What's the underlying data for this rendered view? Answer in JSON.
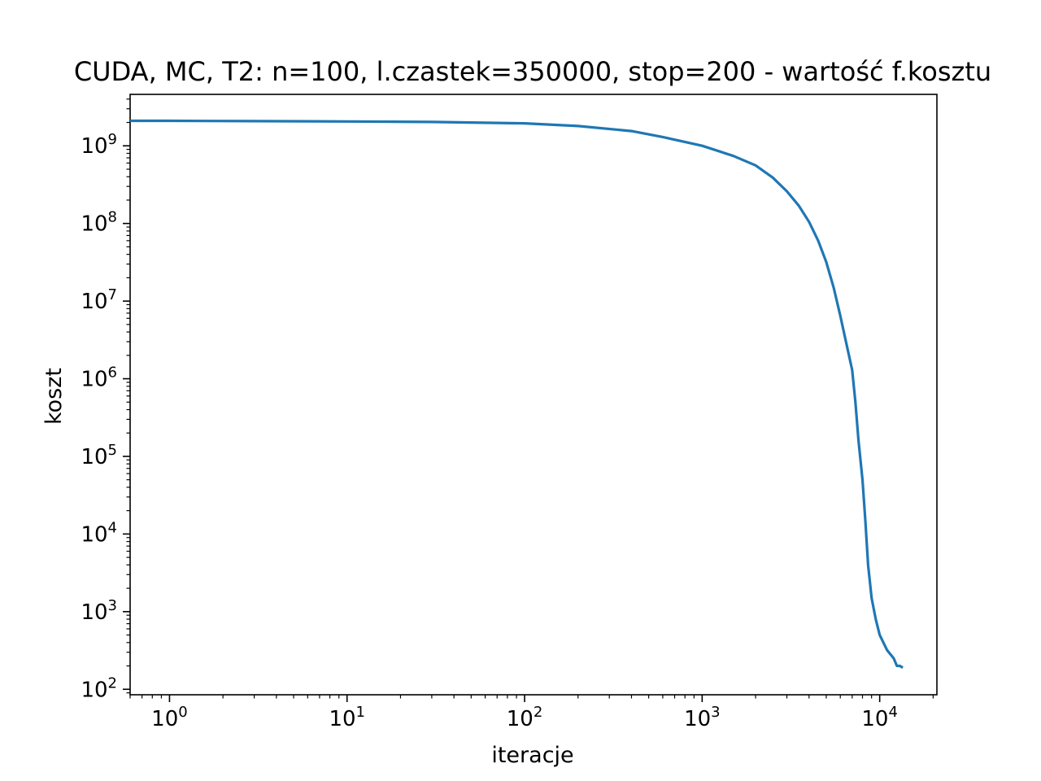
{
  "chart_data": {
    "type": "line",
    "title": "CUDA, MC, T2: n=100, l.czastek=350000, stop=200 - wartość f.kosztu",
    "xlabel": "iteracje",
    "ylabel": "koszt",
    "xscale": "log",
    "yscale": "log",
    "xlim": [
      0.6,
      21000
    ],
    "ylim": [
      85,
      4600000000
    ],
    "grid": false,
    "legend": "none",
    "line_color": "#1f77b4",
    "x_ticks": [
      {
        "base": "10",
        "exp": "0",
        "value": 1
      },
      {
        "base": "10",
        "exp": "1",
        "value": 10
      },
      {
        "base": "10",
        "exp": "2",
        "value": 100
      },
      {
        "base": "10",
        "exp": "3",
        "value": 1000
      },
      {
        "base": "10",
        "exp": "4",
        "value": 10000
      }
    ],
    "y_ticks": [
      {
        "base": "10",
        "exp": "2",
        "value": 100
      },
      {
        "base": "10",
        "exp": "3",
        "value": 1000
      },
      {
        "base": "10",
        "exp": "4",
        "value": 10000
      },
      {
        "base": "10",
        "exp": "5",
        "value": 100000
      },
      {
        "base": "10",
        "exp": "6",
        "value": 1000000
      },
      {
        "base": "10",
        "exp": "7",
        "value": 10000000
      },
      {
        "base": "10",
        "exp": "8",
        "value": 100000000
      },
      {
        "base": "10",
        "exp": "9",
        "value": 1000000000
      }
    ],
    "series": [
      {
        "x": [
          0.6,
          1,
          3,
          10,
          30,
          100,
          200,
          400,
          600,
          1000,
          1500,
          2000,
          2500,
          3000,
          3500,
          4000,
          4500,
          5000,
          5500,
          6000,
          6500,
          7000,
          7300,
          7600,
          8000,
          8300,
          8600,
          9000,
          9500,
          10000,
          11000,
          12000,
          12500,
          13000,
          13500
        ],
        "y": [
          2100000000,
          2100000000,
          2080000000,
          2060000000,
          2030000000,
          1950000000,
          1800000000,
          1550000000,
          1300000000,
          1000000000,
          740000000,
          560000000,
          390000000,
          260000000,
          170000000,
          105000000,
          60000000,
          32000000,
          15000000,
          6500000,
          2800000,
          1300000,
          500000,
          160000,
          50000,
          15000,
          4000,
          1500,
          800,
          500,
          320,
          250,
          200,
          200,
          190
        ]
      }
    ]
  }
}
